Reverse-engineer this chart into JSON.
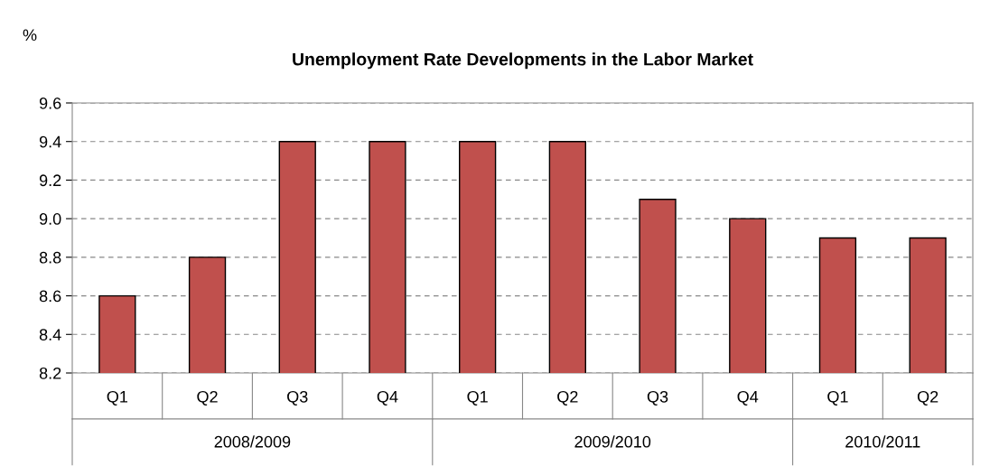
{
  "chart_data": {
    "type": "bar",
    "title": "Unemployment Rate Developments in the Labor Market",
    "ylabel": "%",
    "categories": [
      "Q1",
      "Q2",
      "Q3",
      "Q4",
      "Q1",
      "Q2",
      "Q3",
      "Q4",
      "Q1",
      "Q2"
    ],
    "values": [
      8.6,
      8.8,
      9.4,
      9.4,
      9.4,
      9.4,
      9.1,
      9.0,
      8.9,
      8.9
    ],
    "color": "#c0504d",
    "ylim": [
      8.2,
      9.6
    ],
    "yticks": [
      {
        "value": 8.2,
        "label": "8.2"
      },
      {
        "value": 8.4,
        "label": "8.4"
      },
      {
        "value": 8.6,
        "label": "8.6"
      },
      {
        "value": 8.8,
        "label": "8.8"
      },
      {
        "value": 9.0,
        "label": "9.0"
      },
      {
        "value": 9.2,
        "label": "9.2"
      },
      {
        "value": 9.4,
        "label": "9.4"
      },
      {
        "value": 9.6,
        "label": "9.6"
      }
    ],
    "grid": "y",
    "annotations": [
      "2008/2009",
      "2009/2010",
      "2010/2011"
    ]
  }
}
